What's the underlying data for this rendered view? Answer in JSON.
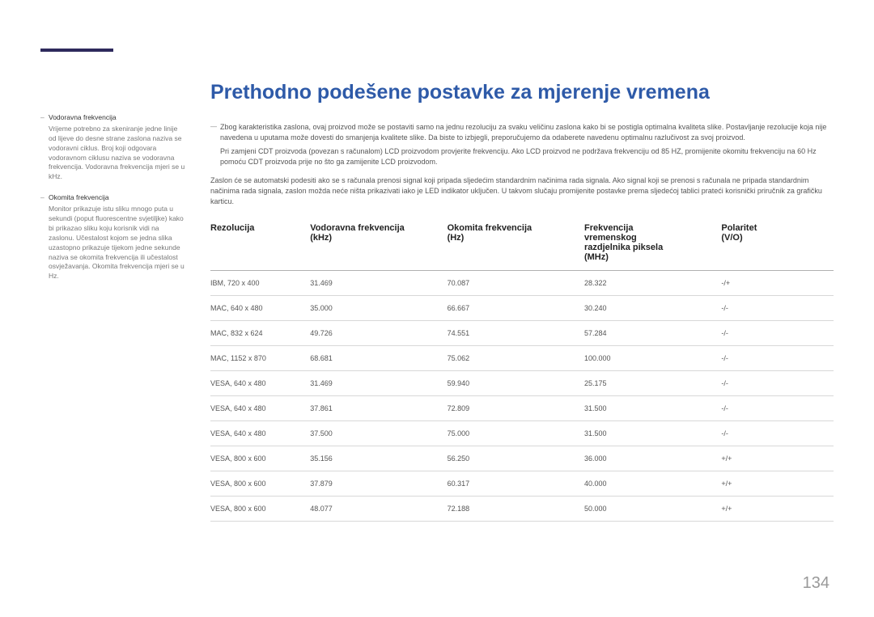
{
  "page_number": "134",
  "title": "Prethodno podešene postavke za mjerenje vremena",
  "sidebar": {
    "items": [
      {
        "title": "Vodoravna frekvencija",
        "body": "Vrijeme potrebno za skeniranje jedne linije od lijeve do desne strane zaslona naziva se vodoravni ciklus. Broj koji odgovara vodoravnom ciklusu naziva se vodoravna frekvencija. Vodoravna frekvencija mjeri se u kHz."
      },
      {
        "title": "Okomita frekvencija",
        "body": "Monitor prikazuje istu sliku mnogo puta u sekundi (poput fluorescentne svjetiljke) kako bi prikazao sliku koju korisnik vidi na zaslonu. Učestalost kojom se jedna slika uzastopno prikazuje tijekom jedne sekunde naziva se okomita frekvencija ili učestalost osvježavanja. Okomita frekvencija mjeri se u Hz."
      }
    ]
  },
  "intro": {
    "p1": "Zbog karakteristika zaslona, ovaj proizvod može se postaviti samo na jednu rezoluciju za svaku veličinu zaslona kako bi se postigla optimalna kvaliteta slike. Postavljanje rezolucije koja nije navedena u uputama može dovesti do smanjenja kvalitete slike. Da biste to izbjegli, preporučujemo da odaberete navedenu optimalnu razlučivost za svoj proizvod.",
    "p1b": "Pri zamjeni CDT proizvoda (povezan s računalom) LCD proizvodom provjerite frekvenciju. Ako LCD proizvod ne podržava frekvenciju od 85 HZ, promijenite okomitu frekvenciju na 60 Hz pomoću CDT proizvoda prije no što ga zamijenite LCD proizvodom.",
    "p2": "Zaslon će se automatski podesiti ako se s računala prenosi signal koji pripada sljedećim standardnim načinima rada signala. Ako signal koji se prenosi s računala ne pripada standardnim načinima rada signala, zaslon možda neće ništa prikazivati iako je LED indikator uključen. U takvom slučaju promijenite postavke prema sljedećoj tablici prateći korisnički priručnik za grafičku karticu."
  },
  "table": {
    "headers": {
      "resolution": "Rezolucija",
      "hfreq": "Vodoravna frekvencija (kHz)",
      "vfreq": "Okomita frekvencija (Hz)",
      "pixclock": "Frekvencija vremenskog razdjelnika piksela (MHz)",
      "polarity": "Polaritet (V/O)"
    },
    "rows": [
      {
        "res": "IBM, 720 x 400",
        "h": "31.469",
        "v": "70.087",
        "p": "28.322",
        "pol": "-/+"
      },
      {
        "res": "MAC, 640 x 480",
        "h": "35.000",
        "v": "66.667",
        "p": "30.240",
        "pol": "-/-"
      },
      {
        "res": "MAC, 832 x 624",
        "h": "49.726",
        "v": "74.551",
        "p": "57.284",
        "pol": "-/-"
      },
      {
        "res": "MAC, 1152 x 870",
        "h": "68.681",
        "v": "75.062",
        "p": "100.000",
        "pol": "-/-"
      },
      {
        "res": "VESA, 640 x 480",
        "h": "31.469",
        "v": "59.940",
        "p": "25.175",
        "pol": "-/-"
      },
      {
        "res": "VESA, 640 x 480",
        "h": "37.861",
        "v": "72.809",
        "p": "31.500",
        "pol": "-/-"
      },
      {
        "res": "VESA, 640 x 480",
        "h": "37.500",
        "v": "75.000",
        "p": "31.500",
        "pol": "-/-"
      },
      {
        "res": "VESA, 800 x 600",
        "h": "35.156",
        "v": "56.250",
        "p": "36.000",
        "pol": "+/+"
      },
      {
        "res": "VESA, 800 x 600",
        "h": "37.879",
        "v": "60.317",
        "p": "40.000",
        "pol": "+/+"
      },
      {
        "res": "VESA, 800 x 600",
        "h": "48.077",
        "v": "72.188",
        "p": "50.000",
        "pol": "+/+"
      }
    ]
  }
}
